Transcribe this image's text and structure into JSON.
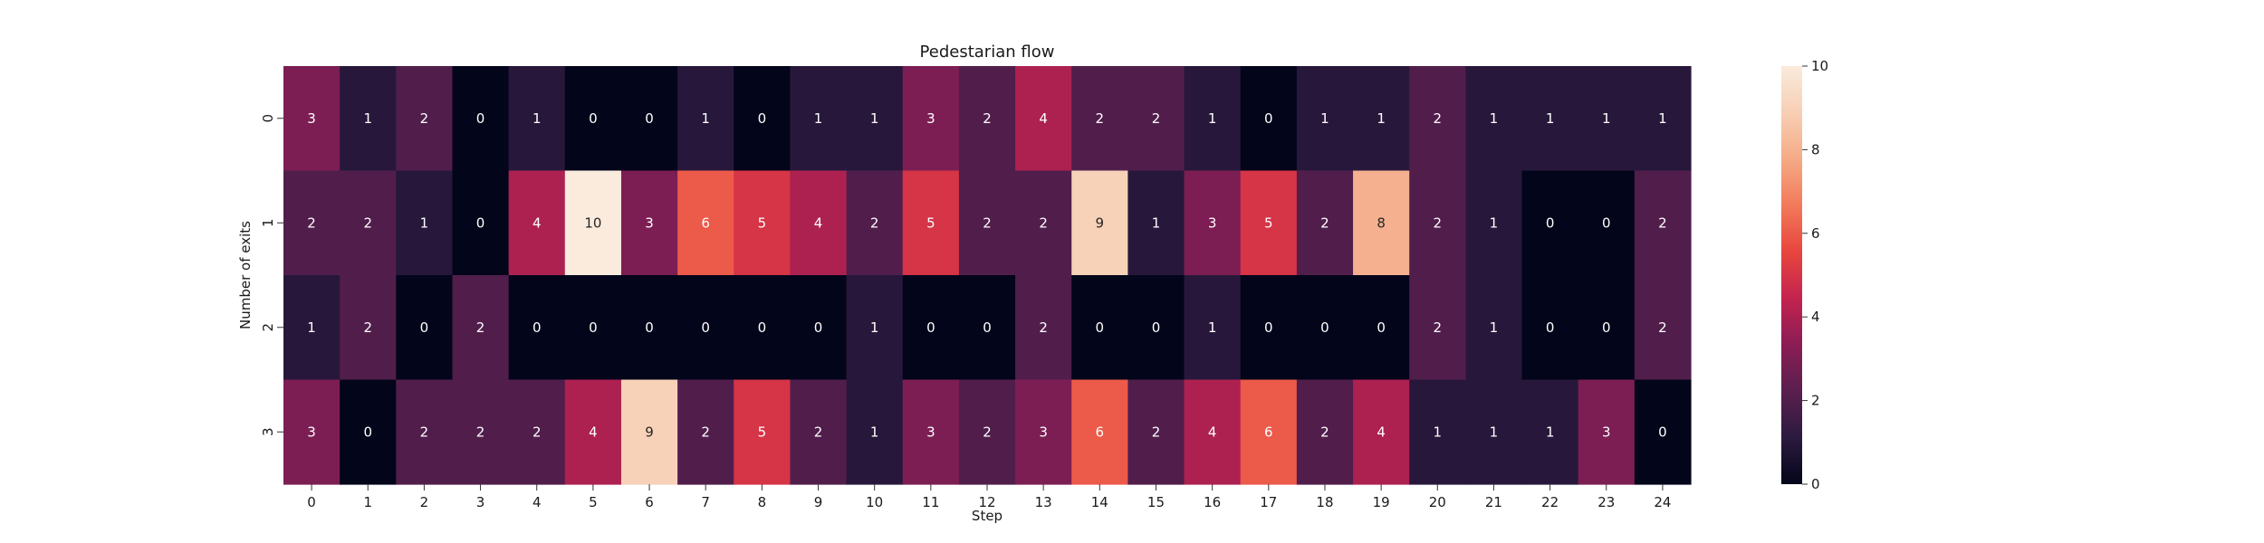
{
  "chart_data": {
    "type": "heatmap",
    "title": "Pedestarian flow",
    "xlabel": "Step",
    "ylabel": "Number of exits",
    "x_categories": [
      "0",
      "1",
      "2",
      "3",
      "4",
      "5",
      "6",
      "7",
      "8",
      "9",
      "10",
      "11",
      "12",
      "13",
      "14",
      "15",
      "16",
      "17",
      "18",
      "19",
      "20",
      "21",
      "22",
      "23",
      "24"
    ],
    "y_categories": [
      "0",
      "1",
      "2",
      "3"
    ],
    "values": [
      [
        3,
        1,
        2,
        0,
        1,
        0,
        0,
        1,
        0,
        1,
        1,
        3,
        2,
        4,
        2,
        2,
        1,
        0,
        1,
        1,
        2,
        1,
        1,
        1,
        1
      ],
      [
        2,
        2,
        1,
        0,
        4,
        10,
        3,
        6,
        5,
        4,
        2,
        5,
        2,
        2,
        9,
        1,
        3,
        5,
        2,
        8,
        2,
        1,
        0,
        0,
        2
      ],
      [
        1,
        2,
        0,
        2,
        0,
        0,
        0,
        0,
        0,
        0,
        1,
        0,
        0,
        2,
        0,
        0,
        1,
        0,
        0,
        0,
        2,
        1,
        0,
        0,
        2
      ],
      [
        3,
        0,
        2,
        2,
        2,
        4,
        9,
        2,
        5,
        2,
        1,
        3,
        2,
        3,
        6,
        2,
        4,
        6,
        2,
        4,
        1,
        1,
        1,
        3,
        0
      ]
    ],
    "colorbar": {
      "vmin": 0,
      "vmax": 10,
      "ticks": [
        "0",
        "2",
        "4",
        "6",
        "8",
        "10"
      ],
      "colormap": "rocket",
      "stops": [
        "#03051a",
        "#2b1a3f",
        "#5a1f4f",
        "#8b1d55",
        "#c3234f",
        "#e8453e",
        "#f27a5b",
        "#f5aa86",
        "#f7cfb4",
        "#faebdd"
      ]
    },
    "annotations": true,
    "grid": false
  }
}
